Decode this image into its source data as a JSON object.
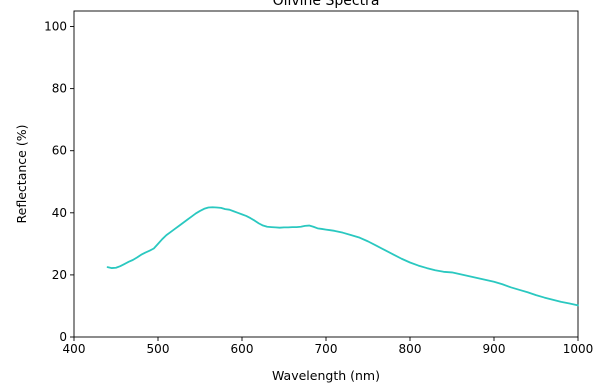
{
  "chart_data": {
    "type": "line",
    "title": "Olivine Spectra",
    "xlabel": "Wavelength (nm)",
    "ylabel": "Reflectance (%)",
    "xlim": [
      400,
      1000
    ],
    "ylim": [
      0,
      105
    ],
    "x_ticks": [
      "400",
      "500",
      "600",
      "700",
      "800",
      "900",
      "1000"
    ],
    "y_ticks": [
      "0",
      "20",
      "40",
      "60",
      "80",
      "100"
    ],
    "grid": false,
    "legend": "none",
    "series": [
      {
        "color": "#2ac8c0",
        "x": [
          440,
          445,
          450,
          455,
          460,
          465,
          470,
          475,
          480,
          485,
          490,
          495,
          500,
          505,
          510,
          515,
          520,
          525,
          530,
          535,
          540,
          545,
          550,
          555,
          560,
          565,
          570,
          575,
          580,
          585,
          590,
          595,
          600,
          605,
          610,
          615,
          620,
          625,
          630,
          635,
          640,
          645,
          650,
          655,
          660,
          665,
          670,
          675,
          680,
          685,
          690,
          695,
          700,
          705,
          710,
          715,
          720,
          730,
          740,
          750,
          760,
          770,
          780,
          790,
          800,
          810,
          820,
          830,
          840,
          850,
          860,
          870,
          880,
          890,
          900,
          910,
          920,
          930,
          940,
          950,
          960,
          970,
          980,
          990,
          1000
        ],
        "y": [
          22.5,
          22.2,
          22.3,
          22.8,
          23.5,
          24.2,
          24.8,
          25.6,
          26.5,
          27.2,
          27.8,
          28.5,
          30.0,
          31.5,
          32.8,
          33.8,
          34.8,
          35.8,
          36.8,
          37.8,
          38.8,
          39.8,
          40.6,
          41.3,
          41.7,
          41.8,
          41.7,
          41.6,
          41.2,
          41.0,
          40.5,
          40.0,
          39.5,
          39.0,
          38.3,
          37.5,
          36.6,
          35.9,
          35.5,
          35.4,
          35.3,
          35.2,
          35.3,
          35.3,
          35.4,
          35.4,
          35.5,
          35.8,
          35.9,
          35.5,
          35.0,
          34.8,
          34.6,
          34.4,
          34.2,
          33.9,
          33.6,
          32.8,
          32.0,
          30.8,
          29.4,
          28.0,
          26.6,
          25.2,
          24.0,
          23.0,
          22.2,
          21.5,
          21.0,
          20.8,
          20.2,
          19.6,
          19.0,
          18.4,
          17.8,
          17.0,
          16.0,
          15.2,
          14.4,
          13.5,
          12.7,
          12.0,
          11.3,
          10.8,
          10.2
        ]
      }
    ]
  }
}
